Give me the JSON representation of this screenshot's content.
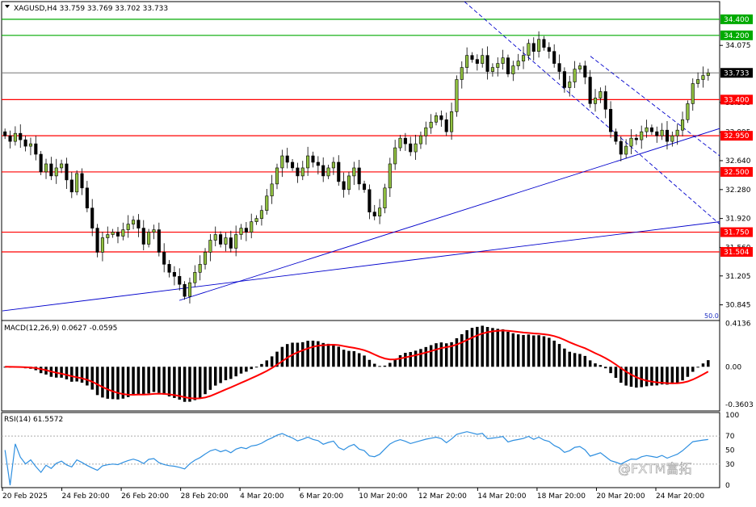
{
  "symbol_line": "XAGUSD,H4  33.759 33.769 33.702 33.733",
  "macd_label": "MACD(12,26,9) 0.0627 -0.0595",
  "rsi_label": "RSI(14) 61.5572",
  "watermark": "@FXTM富拓",
  "colors": {
    "up": "#90c040",
    "down": "#000000",
    "level": "#ff0000",
    "level_top": "#00aa00",
    "trend": "#0000cc",
    "signal": "#ff0000",
    "rsi": "#2e8fe0"
  },
  "chart_data": [
    {
      "type": "candlestick",
      "title": "XAGUSD,H4",
      "ylim": [
        30.65,
        34.62
      ],
      "y_ticks": [
        34.075,
        33.733,
        33.365,
        32.995,
        32.64,
        32.28,
        31.92,
        31.56,
        31.205,
        30.845
      ],
      "y_tick_labels": [
        "34.075",
        "",
        "33.365",
        "32.995",
        "32.640",
        "32.280",
        "31.920",
        "31.560",
        "31.205",
        "30.845"
      ],
      "x_labels": [
        "20 Feb 2025",
        "24 Feb 20:00",
        "26 Feb 20:00",
        "28 Feb 20:00",
        "4 Mar 20:00",
        "6 Mar 20:00",
        "10 Mar 20:00",
        "12 Mar 20:00",
        "14 Mar 20:00",
        "18 Mar 20:00",
        "20 Mar 20:00",
        "24 Mar 20:00"
      ],
      "current_price": "33.733",
      "horizontal_levels": [
        {
          "value": 34.4,
          "label": "34.400",
          "color": "#00aa00"
        },
        {
          "value": 34.2,
          "label": "34.200",
          "color": "#00aa00"
        },
        {
          "value": 33.4,
          "label": "33.400",
          "color": "#ff0000"
        },
        {
          "value": 32.95,
          "label": "32.950",
          "color": "#ff0000"
        },
        {
          "value": 32.5,
          "label": "32.500",
          "color": "#ff0000"
        },
        {
          "value": 31.75,
          "label": "31.750",
          "color": "#ff0000"
        },
        {
          "value": 31.504,
          "label": "31.504",
          "color": "#ff0000"
        }
      ],
      "closes": [
        32.95,
        32.88,
        32.98,
        32.9,
        32.82,
        32.85,
        32.72,
        32.5,
        32.6,
        32.45,
        32.55,
        32.6,
        32.4,
        32.25,
        32.48,
        32.3,
        32.05,
        31.8,
        31.5,
        31.68,
        31.72,
        31.75,
        31.7,
        31.78,
        31.85,
        31.9,
        31.8,
        31.6,
        31.75,
        31.78,
        31.5,
        31.35,
        31.25,
        31.2,
        31.1,
        30.95,
        31.12,
        31.25,
        31.35,
        31.5,
        31.65,
        31.72,
        31.6,
        31.68,
        31.55,
        31.72,
        31.8,
        31.75,
        31.88,
        31.92,
        32.02,
        32.2,
        32.35,
        32.55,
        32.7,
        32.62,
        32.55,
        32.45,
        32.55,
        32.7,
        32.62,
        32.58,
        32.45,
        32.55,
        32.62,
        32.38,
        32.28,
        32.45,
        32.55,
        32.35,
        32.28,
        32.0,
        31.95,
        32.05,
        32.3,
        32.6,
        32.8,
        32.92,
        32.85,
        32.75,
        32.85,
        32.95,
        33.05,
        33.12,
        33.2,
        33.15,
        33.0,
        33.25,
        33.65,
        33.8,
        33.95,
        33.9,
        33.85,
        33.95,
        33.75,
        33.8,
        33.85,
        33.92,
        33.72,
        33.82,
        33.88,
        33.95,
        34.1,
        34.0,
        34.15,
        34.05,
        34.0,
        33.85,
        33.75,
        33.55,
        33.62,
        33.78,
        33.82,
        33.68,
        33.35,
        33.42,
        33.5,
        33.28,
        33.0,
        32.88,
        32.72,
        32.82,
        32.92,
        32.9,
        33.0,
        33.05,
        33.0,
        32.95,
        33.02,
        32.88,
        32.95,
        33.02,
        33.15,
        33.35,
        33.6,
        33.65,
        33.7,
        33.733
      ],
      "open_price": 33.0,
      "trendlines": [
        {
          "from": [
            "20 Feb",
            30.77
          ],
          "to": [
            "27 Mar",
            31.88
          ],
          "style": "solid"
        },
        {
          "from": [
            "28 Feb",
            30.9
          ],
          "to": [
            "27 Mar",
            33.04
          ],
          "style": "solid"
        },
        {
          "from": [
            "12 Mar",
            34.62
          ],
          "to": [
            "27 Mar",
            31.85
          ],
          "style": "dashed"
        },
        {
          "from": [
            "19 Mar",
            33.94
          ],
          "to": [
            "27 Mar",
            32.7
          ],
          "style": "dashed"
        }
      ],
      "corner_label": "50.0"
    },
    {
      "type": "bar",
      "title": "MACD(12,26,9)",
      "values_latest": {
        "macd": 0.0627,
        "signal": -0.0595
      },
      "ylim": [
        -0.42,
        0.44
      ],
      "y_tick_labels": [
        "0.4136",
        "0.00",
        "-0.3603"
      ],
      "y_ticks": [
        0.4136,
        0.0,
        -0.3603
      ]
    },
    {
      "type": "line",
      "title": "RSI(14)",
      "latest": 61.5572,
      "ylim": [
        0,
        100
      ],
      "y_ticks": [
        100,
        70,
        50,
        30,
        0
      ],
      "y_tick_labels": [
        "100",
        "70",
        "50",
        "30",
        "0"
      ]
    }
  ]
}
